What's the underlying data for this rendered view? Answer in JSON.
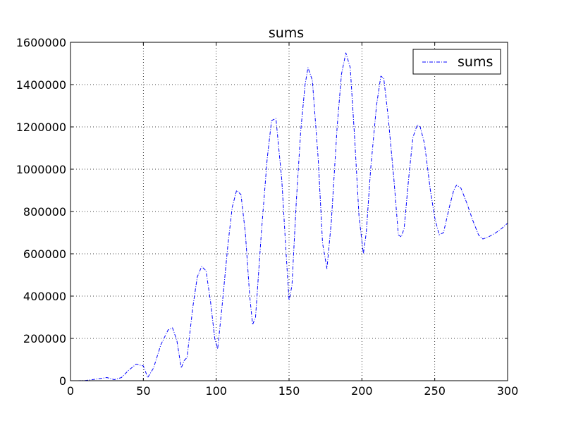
{
  "chart_data": {
    "type": "line",
    "title": "sums",
    "xlabel": "",
    "ylabel": "",
    "xlim": [
      0,
      300
    ],
    "ylim": [
      0,
      1600000
    ],
    "xticks": [
      0,
      50,
      100,
      150,
      200,
      250,
      300
    ],
    "yticks": [
      0,
      200000,
      400000,
      600000,
      800000,
      1000000,
      1200000,
      1400000,
      1600000
    ],
    "grid": true,
    "legend": {
      "placement": "top-right",
      "entries": [
        "sums"
      ]
    },
    "series": [
      {
        "name": "sums",
        "color": "#0000ff",
        "linestyle": "dashdot",
        "x": [
          0,
          5,
          10,
          15,
          20,
          25,
          30,
          35,
          40,
          45,
          50,
          53,
          57,
          62,
          67,
          70,
          73,
          76,
          78,
          80,
          84,
          87,
          90,
          93,
          96,
          99,
          101,
          104,
          108,
          111,
          114,
          117,
          120,
          123,
          125,
          127,
          131,
          135,
          138,
          141,
          145,
          148,
          150,
          152,
          155,
          158,
          161,
          163,
          166,
          170,
          173,
          176,
          179,
          183,
          186,
          189,
          192,
          195,
          198,
          201,
          203,
          206,
          210,
          213,
          215,
          218,
          222,
          225,
          227,
          229,
          232,
          235,
          238,
          240,
          243,
          247,
          250,
          253,
          256,
          260,
          263,
          265,
          268,
          272,
          276,
          280,
          283,
          287,
          292,
          296,
          300
        ],
        "y": [
          0,
          200,
          1000,
          5000,
          10000,
          15000,
          5000,
          15000,
          50000,
          78000,
          70000,
          15000,
          60000,
          170000,
          240000,
          250000,
          190000,
          60000,
          95000,
          110000,
          350000,
          490000,
          540000,
          520000,
          380000,
          200000,
          150000,
          350000,
          640000,
          820000,
          900000,
          880000,
          700000,
          400000,
          265000,
          300000,
          700000,
          1050000,
          1230000,
          1240000,
          950000,
          600000,
          380000,
          450000,
          850000,
          1180000,
          1400000,
          1480000,
          1420000,
          1050000,
          650000,
          530000,
          750000,
          1200000,
          1450000,
          1550000,
          1480000,
          1150000,
          780000,
          600000,
          700000,
          1000000,
          1300000,
          1440000,
          1430000,
          1250000,
          950000,
          690000,
          680000,
          720000,
          950000,
          1150000,
          1210000,
          1200000,
          1120000,
          900000,
          770000,
          690000,
          700000,
          820000,
          900000,
          925000,
          910000,
          840000,
          760000,
          690000,
          670000,
          680000,
          700000,
          720000,
          745000
        ]
      }
    ]
  }
}
